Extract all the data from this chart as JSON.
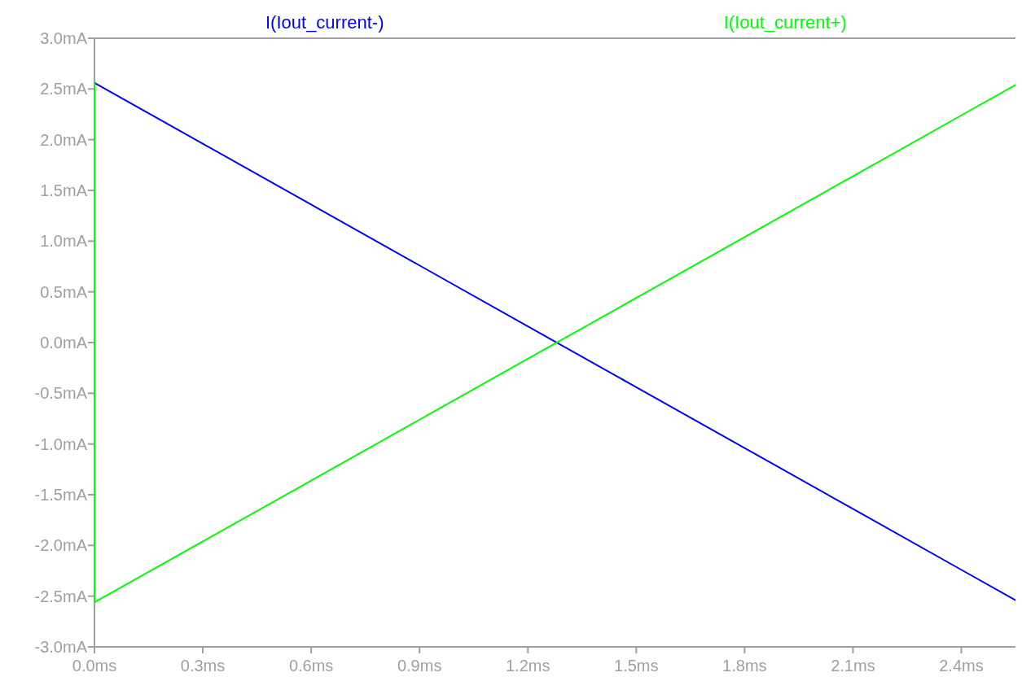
{
  "chart_data": {
    "type": "line",
    "xlim": [
      0,
      2.55
    ],
    "ylim": [
      -3,
      3
    ],
    "xticks": [
      {
        "value": 0,
        "label": "0.0ms"
      },
      {
        "value": 0.3,
        "label": "0.3ms"
      },
      {
        "value": 0.6,
        "label": "0.6ms"
      },
      {
        "value": 0.9,
        "label": "0.9ms"
      },
      {
        "value": 1.2,
        "label": "1.2ms"
      },
      {
        "value": 1.5,
        "label": "1.5ms"
      },
      {
        "value": 1.8,
        "label": "1.8ms"
      },
      {
        "value": 2.1,
        "label": "2.1ms"
      },
      {
        "value": 2.4,
        "label": "2.4ms"
      }
    ],
    "yticks": [
      {
        "value": -3,
        "label": "-3.0mA"
      },
      {
        "value": -2.5,
        "label": "-2.5mA"
      },
      {
        "value": -2,
        "label": "-2.0mA"
      },
      {
        "value": -1.5,
        "label": "-1.5mA"
      },
      {
        "value": -1,
        "label": "-1.0mA"
      },
      {
        "value": -0.5,
        "label": "-0.5mA"
      },
      {
        "value": 0,
        "label": "0.0mA"
      },
      {
        "value": 0.5,
        "label": "0.5mA"
      },
      {
        "value": 1,
        "label": "1.0mA"
      },
      {
        "value": 1.5,
        "label": "1.5mA"
      },
      {
        "value": 2,
        "label": "2.0mA"
      },
      {
        "value": 2.5,
        "label": "2.5mA"
      },
      {
        "value": 3,
        "label": "3.0mA"
      }
    ],
    "legend": "top",
    "grid": false,
    "series": [
      {
        "name": "I(Iout_current-)",
        "color": "#0000ff",
        "x": [
          0,
          0.3,
          0.6,
          0.9,
          1.2,
          1.5,
          1.8,
          2.1,
          2.4,
          2.55
        ],
        "values": [
          2.56,
          1.96,
          1.36,
          0.76,
          0.16,
          -0.44,
          -1.04,
          -1.64,
          -2.24,
          -2.54
        ]
      },
      {
        "name": "I(Iout_current+)",
        "color": "#00ff00",
        "x": [
          0,
          0,
          0.3,
          0.6,
          0.9,
          1.2,
          1.5,
          1.8,
          2.1,
          2.4,
          2.55
        ],
        "values": [
          2.56,
          -2.56,
          -1.96,
          -1.36,
          -0.76,
          -0.16,
          0.44,
          1.04,
          1.64,
          2.24,
          2.54
        ]
      }
    ]
  }
}
